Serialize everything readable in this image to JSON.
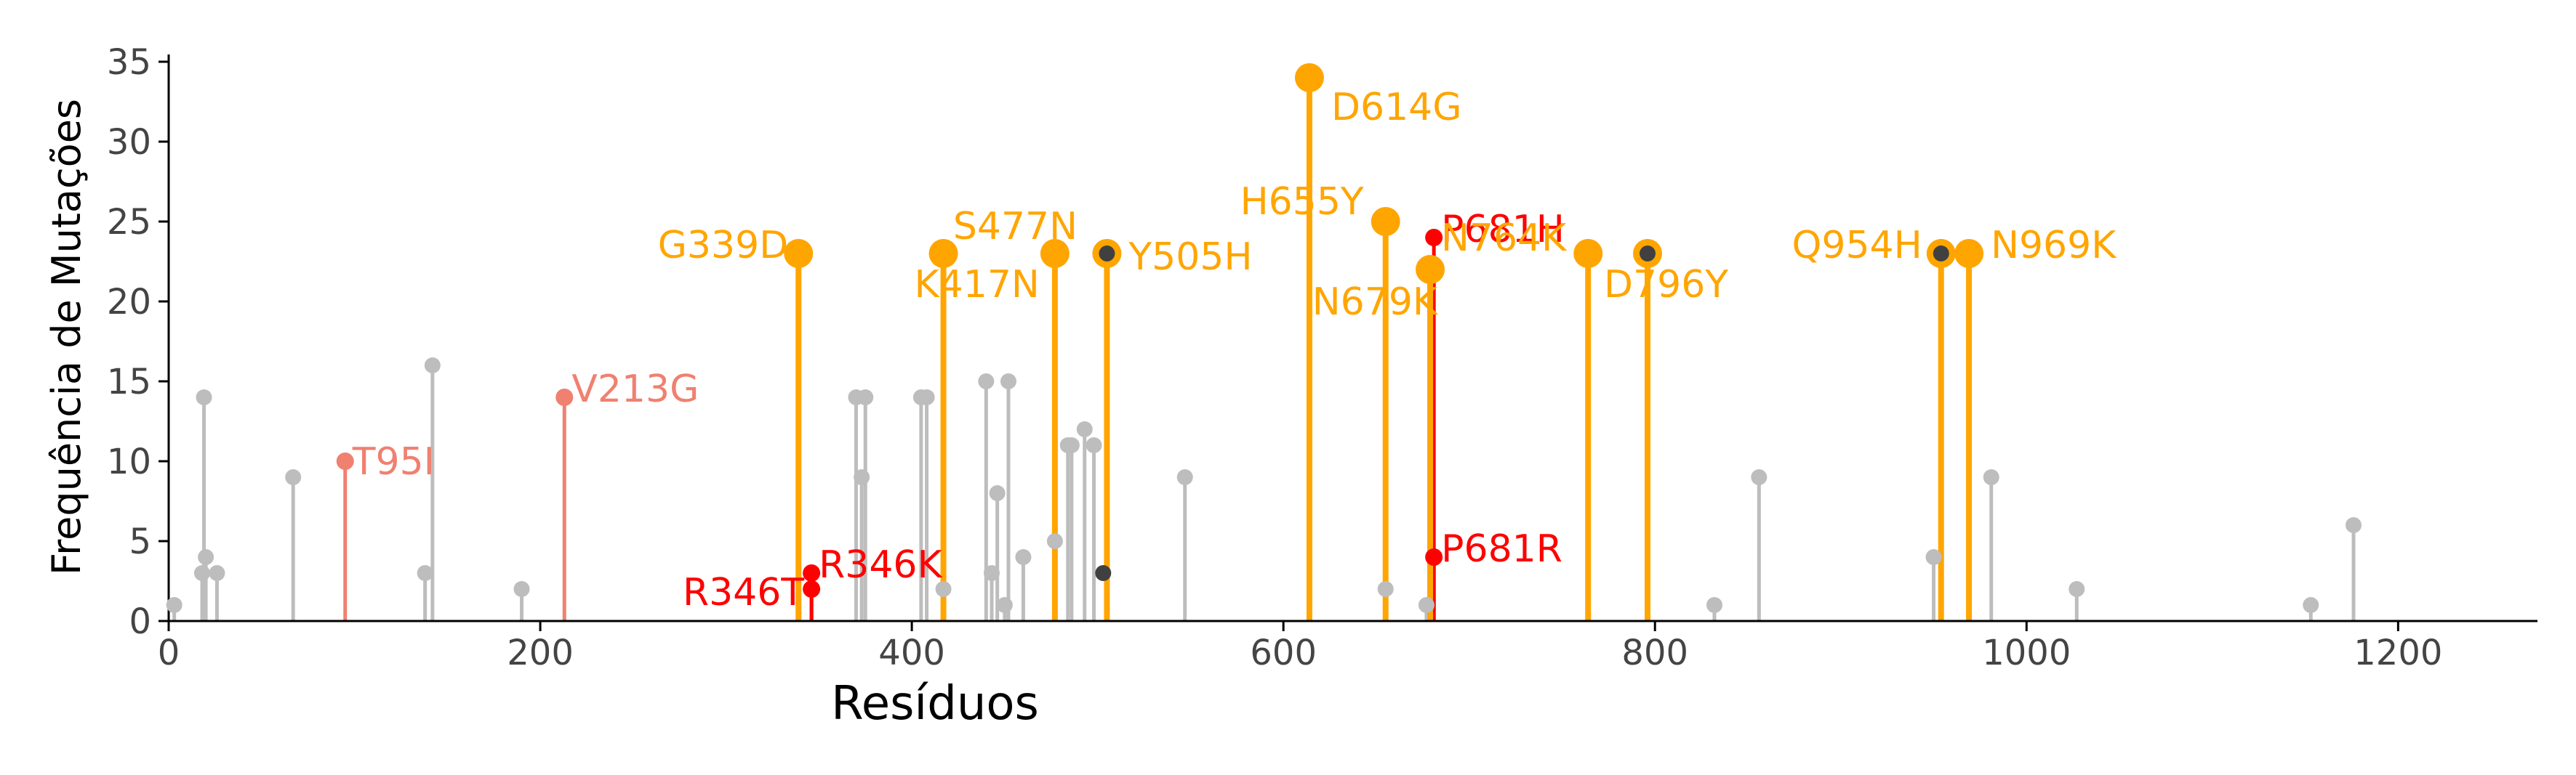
{
  "chart_data": {
    "type": "lollipop",
    "xlabel": "Resíduos",
    "ylabel": "Frequência de Mutações",
    "xlim": [
      0,
      1275
    ],
    "ylim": [
      0,
      35
    ],
    "x_ticks": [
      0,
      200,
      400,
      600,
      800,
      1000,
      1200
    ],
    "y_ticks": [
      0,
      5,
      10,
      15,
      20,
      25,
      30,
      35
    ],
    "grid": false,
    "colors": {
      "gray": "#bdbdbd",
      "dark": "#404040",
      "salmon": "#f08070",
      "red": "#ff0000",
      "orange": "#ffa500",
      "axis": "#000000",
      "tick_text": "#444444"
    },
    "background_points": [
      {
        "x": 3,
        "y": 1
      },
      {
        "x": 18,
        "y": 3
      },
      {
        "x": 19,
        "y": 14
      },
      {
        "x": 20,
        "y": 4
      },
      {
        "x": 26,
        "y": 3
      },
      {
        "x": 67,
        "y": 9
      },
      {
        "x": 138,
        "y": 3
      },
      {
        "x": 142,
        "y": 16
      },
      {
        "x": 190,
        "y": 2
      },
      {
        "x": 370,
        "y": 14
      },
      {
        "x": 373,
        "y": 9
      },
      {
        "x": 375,
        "y": 14
      },
      {
        "x": 405,
        "y": 14
      },
      {
        "x": 408,
        "y": 14
      },
      {
        "x": 417,
        "y": 2
      },
      {
        "x": 440,
        "y": 15
      },
      {
        "x": 443,
        "y": 3
      },
      {
        "x": 446,
        "y": 8
      },
      {
        "x": 450,
        "y": 1
      },
      {
        "x": 452,
        "y": 15
      },
      {
        "x": 460,
        "y": 4
      },
      {
        "x": 477,
        "y": 5
      },
      {
        "x": 484,
        "y": 11
      },
      {
        "x": 486,
        "y": 11
      },
      {
        "x": 493,
        "y": 12
      },
      {
        "x": 498,
        "y": 11
      },
      {
        "x": 547,
        "y": 9
      },
      {
        "x": 655,
        "y": 2
      },
      {
        "x": 677,
        "y": 1
      },
      {
        "x": 832,
        "y": 1
      },
      {
        "x": 856,
        "y": 9
      },
      {
        "x": 950,
        "y": 4
      },
      {
        "x": 981,
        "y": 9
      },
      {
        "x": 1027,
        "y": 2
      },
      {
        "x": 1153,
        "y": 1
      },
      {
        "x": 1176,
        "y": 6
      }
    ],
    "dark_points": [
      {
        "x": 503,
        "y": 3
      },
      {
        "x": 505,
        "y": 23
      },
      {
        "x": 796,
        "y": 23
      },
      {
        "x": 954,
        "y": 23
      }
    ],
    "highlighted": [
      {
        "x": 95,
        "y": 10,
        "label": "T95I",
        "color": "salmon",
        "size": "small",
        "label_anchor": "start",
        "dx": 10,
        "dy": 0
      },
      {
        "x": 213,
        "y": 14,
        "label": "V213G",
        "color": "salmon",
        "size": "small",
        "label_anchor": "start",
        "dx": 10,
        "dy": -12
      },
      {
        "x": 346,
        "y": 2,
        "label": "R346T",
        "color": "red",
        "size": "small",
        "label_anchor": "end",
        "dx": -10,
        "dy": 4
      },
      {
        "x": 346,
        "y": 3,
        "label": "R346K",
        "color": "red",
        "size": "small",
        "label_anchor": "start",
        "dx": 10,
        "dy": -12
      },
      {
        "x": 681,
        "y": 4,
        "label": "P681R",
        "color": "red",
        "size": "small",
        "label_anchor": "start",
        "dx": 10,
        "dy": -12
      },
      {
        "x": 681,
        "y": 24,
        "label": "P681H",
        "color": "red",
        "size": "small",
        "label_anchor": "start",
        "dx": 10,
        "dy": -12
      },
      {
        "x": 339,
        "y": 23,
        "label": "G339D",
        "color": "orange",
        "size": "large",
        "label_anchor": "end",
        "dx": -14,
        "dy": -12
      },
      {
        "x": 417,
        "y": 23,
        "label": "K417N",
        "color": "orange",
        "size": "large",
        "label_anchor": "start",
        "dx": -40,
        "dy": 42
      },
      {
        "x": 477,
        "y": 23,
        "label": "S477N",
        "color": "orange",
        "size": "large",
        "label_anchor": "start",
        "dx": -140,
        "dy": -38
      },
      {
        "x": 505,
        "y": 23,
        "label": "Y505H",
        "color": "orange",
        "size": "large",
        "label_anchor": "start",
        "dx": 30,
        "dy": 4
      },
      {
        "x": 614,
        "y": 34,
        "label": "D614G",
        "color": "orange",
        "size": "large",
        "label_anchor": "start",
        "dx": 30,
        "dy": 40
      },
      {
        "x": 655,
        "y": 25,
        "label": "H655Y",
        "color": "orange",
        "size": "large",
        "label_anchor": "end",
        "dx": -30,
        "dy": -28
      },
      {
        "x": 679,
        "y": 22,
        "label": "N679K",
        "color": "orange",
        "size": "large",
        "label_anchor": "end",
        "dx": 10,
        "dy": 44
      },
      {
        "x": 764,
        "y": 23,
        "label": "N764K",
        "color": "orange",
        "size": "large",
        "label_anchor": "end",
        "dx": -30,
        "dy": -22
      },
      {
        "x": 796,
        "y": 23,
        "label": "D796Y",
        "color": "orange",
        "size": "large",
        "label_anchor": "start",
        "dx": -60,
        "dy": 42
      },
      {
        "x": 954,
        "y": 23,
        "label": "Q954H",
        "color": "orange",
        "size": "large",
        "label_anchor": "end",
        "dx": -26,
        "dy": -12
      },
      {
        "x": 969,
        "y": 23,
        "label": "N969K",
        "color": "orange",
        "size": "large",
        "label_anchor": "start",
        "dx": 30,
        "dy": -12
      }
    ]
  }
}
